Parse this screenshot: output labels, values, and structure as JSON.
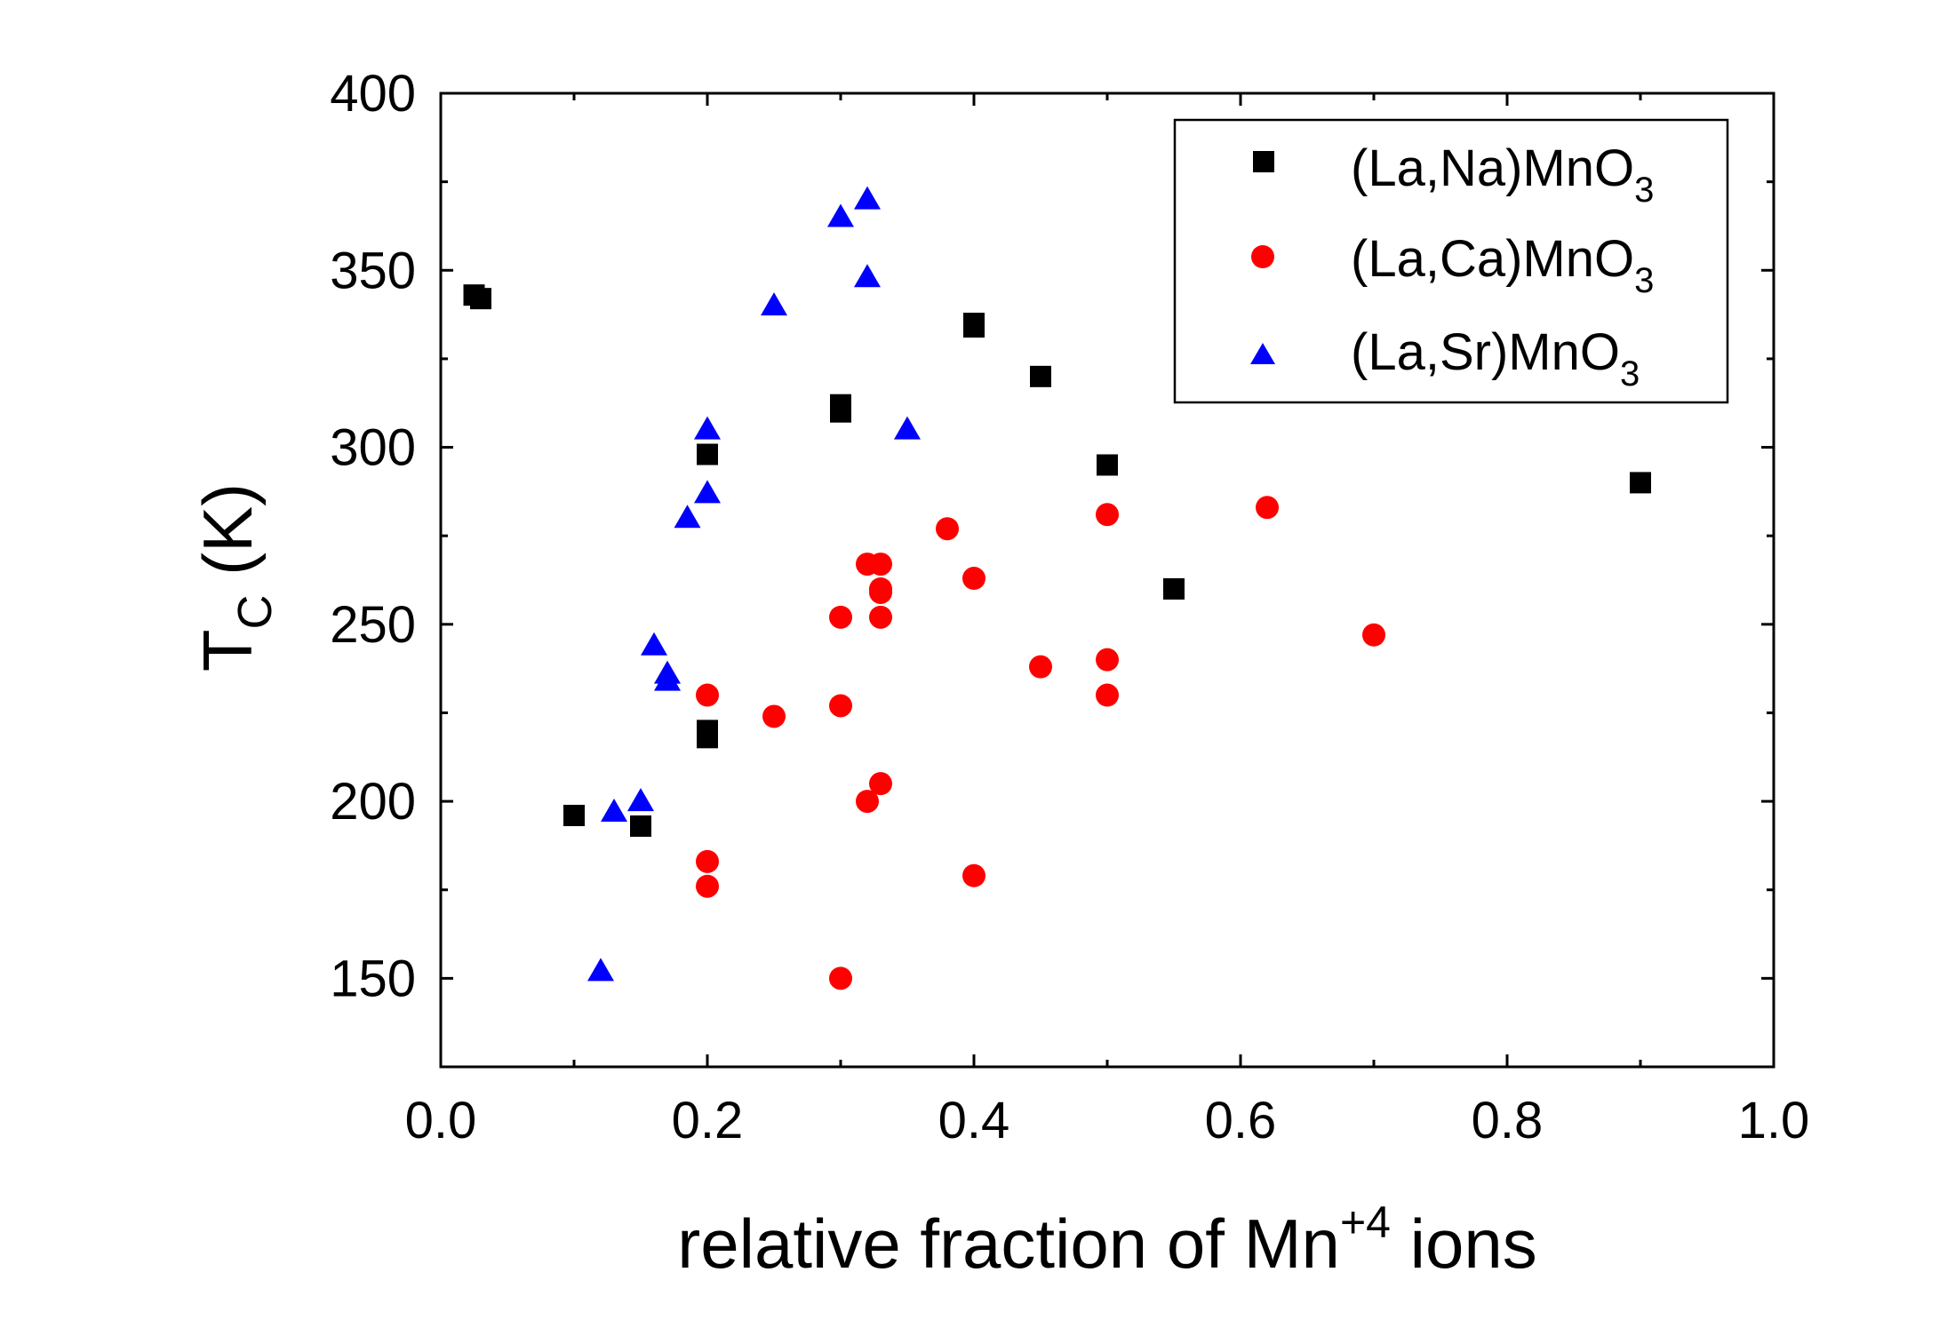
{
  "chart_data": {
    "type": "scatter",
    "title": "",
    "xlabel": "relative fraction of Mn+4 ions",
    "ylabel": "TC (K)",
    "xlabel_parts": {
      "main": "relative fraction of Mn",
      "sup": "+4",
      "tail": " ions"
    },
    "ylabel_parts": {
      "main": "T",
      "sub": "C",
      "tail": " (K)"
    },
    "xlim": [
      0.0,
      1.0
    ],
    "ylim": [
      125,
      400
    ],
    "xticks": [
      "0.0",
      "0.2",
      "0.4",
      "0.6",
      "0.8",
      "1.0"
    ],
    "xtick_values": [
      0.0,
      0.2,
      0.4,
      0.6,
      0.8,
      1.0
    ],
    "yticks": [
      "150",
      "200",
      "250",
      "300",
      "350",
      "400"
    ],
    "ytick_values": [
      150,
      200,
      250,
      300,
      350,
      400
    ],
    "legend_position": "top-right",
    "series": [
      {
        "name": "(La,Na)MnO3",
        "label_main": "(La,Na)MnO",
        "label_sub": "3",
        "marker": "square",
        "color": "#000000",
        "points": [
          [
            0.025,
            343
          ],
          [
            0.03,
            342
          ],
          [
            0.1,
            196
          ],
          [
            0.15,
            193
          ],
          [
            0.2,
            298
          ],
          [
            0.2,
            220
          ],
          [
            0.2,
            218
          ],
          [
            0.3,
            312
          ],
          [
            0.3,
            310
          ],
          [
            0.4,
            335
          ],
          [
            0.4,
            334
          ],
          [
            0.45,
            320
          ],
          [
            0.5,
            295
          ],
          [
            0.55,
            260
          ],
          [
            0.9,
            290
          ]
        ]
      },
      {
        "name": "(La,Ca)MnO3",
        "label_main": "(La,Ca)MnO",
        "label_sub": "3",
        "marker": "circle",
        "color": "#ff0000",
        "points": [
          [
            0.2,
            230
          ],
          [
            0.2,
            183
          ],
          [
            0.2,
            176
          ],
          [
            0.25,
            224
          ],
          [
            0.3,
            252
          ],
          [
            0.3,
            227
          ],
          [
            0.3,
            150
          ],
          [
            0.32,
            267
          ],
          [
            0.32,
            200
          ],
          [
            0.33,
            267
          ],
          [
            0.33,
            260
          ],
          [
            0.33,
            259
          ],
          [
            0.33,
            252
          ],
          [
            0.33,
            205
          ],
          [
            0.38,
            277
          ],
          [
            0.4,
            263
          ],
          [
            0.4,
            179
          ],
          [
            0.45,
            238
          ],
          [
            0.5,
            281
          ],
          [
            0.5,
            240
          ],
          [
            0.5,
            230
          ],
          [
            0.62,
            283
          ],
          [
            0.7,
            247
          ]
        ]
      },
      {
        "name": "(La,Sr)MnO3",
        "label_main": "(La,Sr)MnO",
        "label_sub": "3",
        "marker": "triangle",
        "color": "#0000ff",
        "points": [
          [
            0.12,
            152
          ],
          [
            0.13,
            197
          ],
          [
            0.15,
            200
          ],
          [
            0.16,
            244
          ],
          [
            0.17,
            236
          ],
          [
            0.17,
            234
          ],
          [
            0.185,
            280
          ],
          [
            0.2,
            305
          ],
          [
            0.2,
            287
          ],
          [
            0.25,
            340
          ],
          [
            0.3,
            365
          ],
          [
            0.32,
            370
          ],
          [
            0.32,
            348
          ],
          [
            0.35,
            305
          ]
        ]
      }
    ]
  }
}
